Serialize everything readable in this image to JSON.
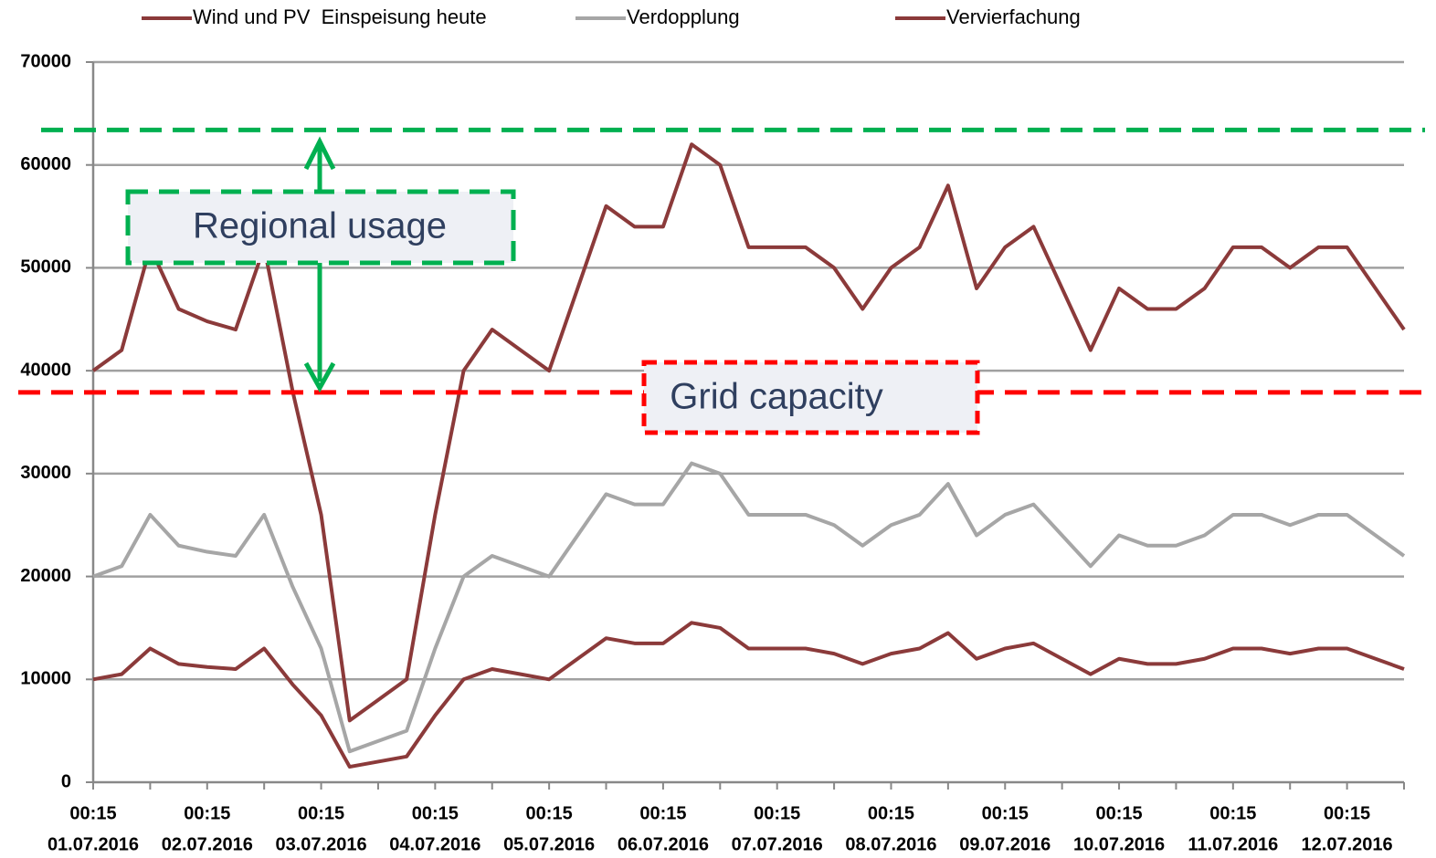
{
  "chart_data": {
    "type": "line",
    "legend": "top",
    "grid": true,
    "ylim": [
      0,
      70000
    ],
    "yticks": [
      0,
      10000,
      20000,
      30000,
      40000,
      50000,
      60000,
      70000
    ],
    "xlim": [
      0,
      11.5
    ],
    "xticks": [
      0,
      0.5,
      1,
      1.5,
      2,
      2.5,
      3,
      3.5,
      4,
      4.5,
      5,
      5.5,
      6,
      6.5,
      7,
      7.5,
      8,
      8.5,
      9,
      9.5,
      10,
      10.5,
      11,
      11.5
    ],
    "categories": [
      [
        "00:15",
        "01.07.2016"
      ],
      [
        "00:15",
        "02.07.2016"
      ],
      [
        "00:15",
        "03.07.2016"
      ],
      [
        "00:15",
        "04.07.2016"
      ],
      [
        "00:15",
        "05.07.2016"
      ],
      [
        "00:15",
        "06.07.2016"
      ],
      [
        "00:15",
        "07.07.2016"
      ],
      [
        "00:15",
        "08.07.2016"
      ],
      [
        "00:15",
        "09.07.2016"
      ],
      [
        "00:15",
        "10.07.2016"
      ],
      [
        "00:15",
        "11.07.2016"
      ],
      [
        "00:15",
        "12.07.2016"
      ]
    ],
    "x": [
      0,
      0.25,
      0.5,
      0.75,
      1,
      1.25,
      1.5,
      1.75,
      2,
      2.25,
      2.5,
      2.75,
      3,
      3.25,
      3.5,
      3.75,
      4,
      4.25,
      4.5,
      4.75,
      5,
      5.25,
      5.5,
      5.75,
      6,
      6.25,
      6.5,
      6.75,
      7,
      7.25,
      7.5,
      7.75,
      8,
      8.25,
      8.5,
      8.75,
      9,
      9.25,
      9.5,
      9.75,
      10,
      10.25,
      10.5,
      10.75,
      11,
      11.25,
      11.5
    ],
    "series": [
      {
        "name": "Wind und PV  Einspeisung heute",
        "color": "#8b3a3a",
        "values": [
          10000,
          10500,
          13000,
          11500,
          11200,
          11000,
          13000,
          9500,
          6500,
          1500,
          2000,
          2500,
          6500,
          10000,
          11000,
          10500,
          10000,
          12000,
          14000,
          13500,
          13500,
          15500,
          15000,
          13000,
          13000,
          13000,
          12500,
          11500,
          12500,
          13000,
          14500,
          12000,
          13000,
          13500,
          12000,
          10500,
          12000,
          11500,
          11500,
          12000,
          13000,
          13000,
          12500,
          13000,
          13000,
          12000,
          11000
        ]
      },
      {
        "name": "Verdopplung",
        "color": "#a6a6a6",
        "values": [
          20000,
          21000,
          26000,
          23000,
          22400,
          22000,
          26000,
          19000,
          13000,
          3000,
          4000,
          5000,
          13000,
          20000,
          22000,
          21000,
          20000,
          24000,
          28000,
          27000,
          27000,
          31000,
          30000,
          26000,
          26000,
          26000,
          25000,
          23000,
          25000,
          26000,
          29000,
          24000,
          26000,
          27000,
          24000,
          21000,
          24000,
          23000,
          23000,
          24000,
          26000,
          26000,
          25000,
          26000,
          26000,
          24000,
          22000
        ]
      },
      {
        "name": "Vervierfachung",
        "color": "#8b3a3a",
        "values": [
          40000,
          42000,
          52000,
          46000,
          44800,
          44000,
          52000,
          38000,
          26000,
          6000,
          8000,
          10000,
          26000,
          40000,
          44000,
          42000,
          40000,
          48000,
          56000,
          54000,
          54000,
          62000,
          60000,
          52000,
          52000,
          52000,
          50000,
          46000,
          50000,
          52000,
          58000,
          48000,
          52000,
          54000,
          48000,
          42000,
          48000,
          46000,
          46000,
          48000,
          52000,
          52000,
          50000,
          52000,
          52000,
          48000,
          44000
        ]
      }
    ],
    "reference_lines": [
      {
        "value": 63400,
        "color": "#00b050"
      },
      {
        "value": 37900,
        "color": "#ff0000"
      }
    ],
    "annotations": [
      "Regional usage",
      "Grid capacity"
    ]
  }
}
